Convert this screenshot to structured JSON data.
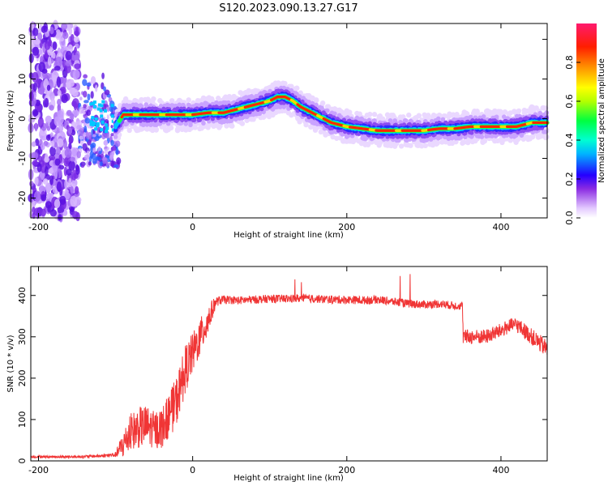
{
  "title": "S120.2023.090.13.27.G17",
  "chart_data": [
    {
      "type": "heatmap",
      "xlabel": "Height of straight line (km)",
      "ylabel": "Frequency (Hz)",
      "xlim": [
        -210,
        460
      ],
      "ylim": [
        -25,
        24
      ],
      "x_ticks": [
        -200,
        0,
        200,
        400
      ],
      "y_ticks": [
        -20,
        -10,
        0,
        10,
        20
      ],
      "colorbar": {
        "label": "Normalized spectral amplitude",
        "range": [
          0,
          1
        ],
        "ticks": [
          0.0,
          0.2,
          0.4,
          0.6,
          0.8
        ]
      },
      "ridge": {
        "x": [
          -100,
          -90,
          -80,
          -60,
          -40,
          -20,
          0,
          20,
          40,
          60,
          80,
          100,
          110,
          120,
          130,
          140,
          160,
          180,
          200,
          220,
          240,
          260,
          280,
          300,
          320,
          340,
          360,
          380,
          400,
          420,
          440,
          460
        ],
        "freq": [
          -2,
          1,
          1,
          1,
          1,
          1,
          1,
          1.5,
          1.5,
          2.5,
          3.5,
          4.5,
          5.5,
          5.5,
          4.5,
          3,
          1,
          -1,
          -2,
          -2.5,
          -3,
          -3,
          -3,
          -3,
          -2.5,
          -2.5,
          -2,
          -2,
          -2,
          -2,
          -1,
          -1
        ]
      },
      "grid": false
    },
    {
      "type": "line",
      "xlabel": "Height of straight line (km)",
      "ylabel": "SNR (10 * v/v)",
      "xlim": [
        -210,
        460
      ],
      "ylim": [
        0,
        470
      ],
      "x_ticks": [
        -200,
        0,
        200,
        400
      ],
      "y_ticks": [
        0,
        100,
        200,
        300,
        400
      ],
      "color": "#f03535",
      "series": [
        {
          "x": [
            -210,
            -180,
            -150,
            -120,
            -100,
            -90,
            -80,
            -70,
            -60,
            -50,
            -40,
            -30,
            -20,
            -10,
            0,
            10,
            20,
            30,
            40,
            60,
            80,
            100,
            120,
            140,
            160,
            180,
            200,
            220,
            240,
            260,
            280,
            300,
            320,
            340,
            350,
            351,
            360,
            380,
            400,
            410,
            420,
            440,
            460
          ],
          "values": [
            10,
            10,
            10,
            12,
            15,
            40,
            70,
            80,
            85,
            75,
            80,
            110,
            150,
            220,
            260,
            300,
            340,
            385,
            390,
            388,
            390,
            392,
            392,
            393,
            392,
            390,
            390,
            388,
            390,
            385,
            380,
            378,
            380,
            375,
            375,
            300,
            300,
            300,
            315,
            325,
            330,
            300,
            270
          ],
          "noise": [
            3,
            3,
            3,
            4,
            6,
            35,
            45,
            50,
            50,
            45,
            50,
            55,
            60,
            60,
            50,
            45,
            40,
            12,
            10,
            10,
            10,
            10,
            10,
            10,
            10,
            10,
            10,
            10,
            10,
            10,
            10,
            10,
            10,
            10,
            10,
            18,
            18,
            18,
            18,
            18,
            18,
            20,
            22
          ]
        }
      ],
      "grid": false
    }
  ]
}
